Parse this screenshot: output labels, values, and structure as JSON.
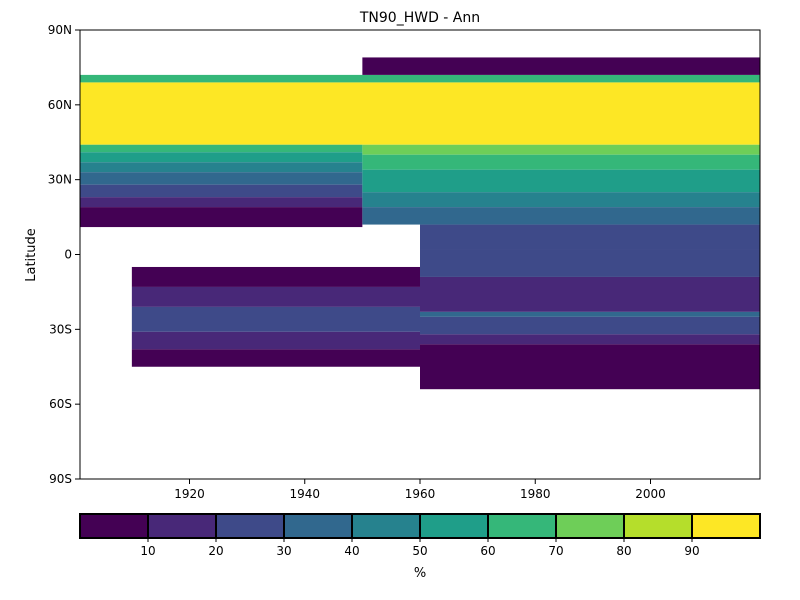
{
  "chart_data": {
    "type": "heatmap",
    "title": "TN90_HWD - Ann",
    "xlabel": "",
    "ylabel": "Latitude",
    "xlim": [
      1901,
      2019
    ],
    "ylim": [
      -90,
      90
    ],
    "x_ticks": [
      {
        "value": 1920,
        "label": "1920"
      },
      {
        "value": 1940,
        "label": "1940"
      },
      {
        "value": 1960,
        "label": "1960"
      },
      {
        "value": 1980,
        "label": "1980"
      },
      {
        "value": 2000,
        "label": "2000"
      }
    ],
    "y_ticks": [
      {
        "value": 90,
        "label": "90N"
      },
      {
        "value": 60,
        "label": "60N"
      },
      {
        "value": 30,
        "label": "30N"
      },
      {
        "value": 0,
        "label": "0"
      },
      {
        "value": -30,
        "label": "30S"
      },
      {
        "value": -60,
        "label": "60S"
      },
      {
        "value": -90,
        "label": "90S"
      }
    ],
    "grid": false,
    "colorbar": {
      "orientation": "horizontal",
      "label": "%",
      "levels": [
        0,
        10,
        20,
        30,
        40,
        50,
        60,
        70,
        80,
        90,
        100
      ],
      "tick_labels": [
        "10",
        "20",
        "30",
        "40",
        "50",
        "60",
        "70",
        "80",
        "90"
      ],
      "colors": [
        "#440154",
        "#482878",
        "#3e4a89",
        "#31688e",
        "#26828e",
        "#1f9e89",
        "#35b779",
        "#6ece58",
        "#b5de2b",
        "#fde725"
      ]
    },
    "regions": [
      {
        "x": [
          1901,
          2019
        ],
        "y": [
          44,
          69
        ],
        "value": 95
      },
      {
        "x": [
          1901,
          2019
        ],
        "y": [
          69,
          72
        ],
        "value": 65
      },
      {
        "x": [
          1950,
          2019
        ],
        "y": [
          72,
          79
        ],
        "value": 5
      },
      {
        "x": [
          1901,
          1950
        ],
        "y": [
          41,
          44
        ],
        "value": 65
      },
      {
        "x": [
          1901,
          1950
        ],
        "y": [
          37,
          41
        ],
        "value": 55
      },
      {
        "x": [
          1901,
          1950
        ],
        "y": [
          33,
          37
        ],
        "value": 45
      },
      {
        "x": [
          1901,
          1950
        ],
        "y": [
          28,
          33
        ],
        "value": 35
      },
      {
        "x": [
          1901,
          1950
        ],
        "y": [
          23,
          28
        ],
        "value": 25
      },
      {
        "x": [
          1901,
          1950
        ],
        "y": [
          19,
          23
        ],
        "value": 15
      },
      {
        "x": [
          1901,
          1950
        ],
        "y": [
          11,
          19
        ],
        "value": 5
      },
      {
        "x": [
          1950,
          2019
        ],
        "y": [
          40,
          44
        ],
        "value": 75
      },
      {
        "x": [
          1950,
          2019
        ],
        "y": [
          34,
          40
        ],
        "value": 65
      },
      {
        "x": [
          1950,
          2019
        ],
        "y": [
          25,
          34
        ],
        "value": 55
      },
      {
        "x": [
          1950,
          2019
        ],
        "y": [
          19,
          25
        ],
        "value": 45
      },
      {
        "x": [
          1950,
          2019
        ],
        "y": [
          12,
          19
        ],
        "value": 35
      },
      {
        "x": [
          1960,
          2019
        ],
        "y": [
          2,
          12
        ],
        "value": 25
      },
      {
        "x": [
          1960,
          2019
        ],
        "y": [
          -9,
          2
        ],
        "value": 25
      },
      {
        "x": [
          1960,
          2019
        ],
        "y": [
          -23,
          -9
        ],
        "value": 15
      },
      {
        "x": [
          1960,
          2019
        ],
        "y": [
          -25,
          -23
        ],
        "value": 35
      },
      {
        "x": [
          1960,
          2019
        ],
        "y": [
          -32,
          -25
        ],
        "value": 25
      },
      {
        "x": [
          1960,
          2019
        ],
        "y": [
          -36,
          -32
        ],
        "value": 15
      },
      {
        "x": [
          1960,
          2019
        ],
        "y": [
          -54,
          -36
        ],
        "value": 5
      },
      {
        "x": [
          1910,
          1960
        ],
        "y": [
          -13,
          -5
        ],
        "value": 5
      },
      {
        "x": [
          1910,
          1960
        ],
        "y": [
          -21,
          -13
        ],
        "value": 15
      },
      {
        "x": [
          1910,
          1960
        ],
        "y": [
          -31,
          -21
        ],
        "value": 25
      },
      {
        "x": [
          1910,
          1960
        ],
        "y": [
          -38,
          -31
        ],
        "value": 15
      },
      {
        "x": [
          1910,
          1960
        ],
        "y": [
          -45,
          -38
        ],
        "value": 5
      }
    ]
  }
}
